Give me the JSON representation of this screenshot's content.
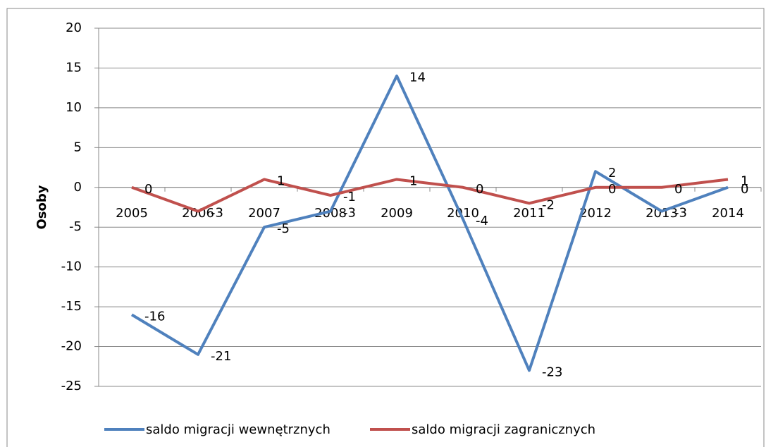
{
  "chart_data": {
    "type": "line",
    "y_label": "Osoby",
    "categories": [
      "2005",
      "2006",
      "2007",
      "2008",
      "2009",
      "2010",
      "2011",
      "2012",
      "2013",
      "2014"
    ],
    "series": [
      {
        "name": "saldo migracji wewnętrznych",
        "color": "#4f81bd",
        "values": [
          -16,
          -21,
          -5,
          -3,
          14,
          -4,
          -23,
          2,
          -3,
          0
        ]
      },
      {
        "name": "saldo migracji zagranicznych",
        "color": "#c0504d",
        "values": [
          0,
          -3,
          1,
          -1,
          1,
          0,
          -2,
          0,
          0,
          1
        ]
      }
    ],
    "ylim": [
      -25,
      20
    ],
    "yticks": [
      -25,
      -20,
      -15,
      -10,
      -5,
      0,
      5,
      10,
      15,
      20
    ],
    "grid": true,
    "legend": "bottom",
    "data_labels": true
  }
}
